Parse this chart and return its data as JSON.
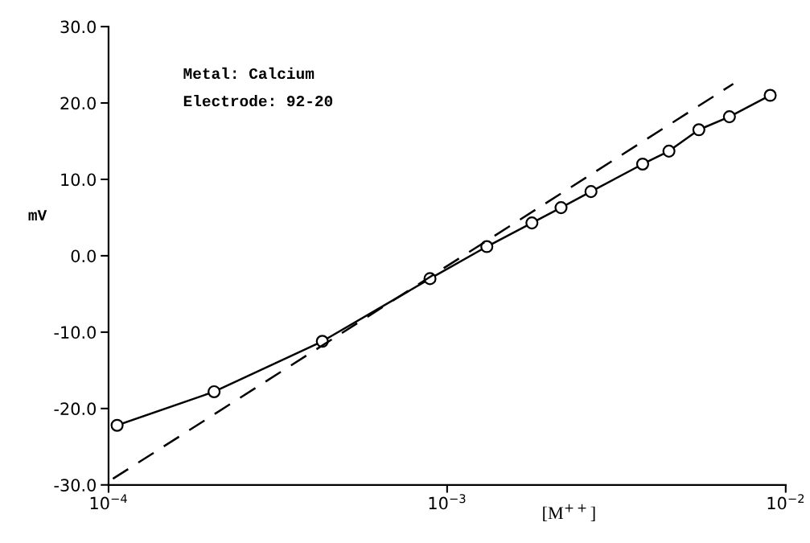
{
  "chart_data": {
    "type": "line",
    "xlabel": "[M$^{++}$]",
    "ylabel": "mV",
    "log": "x",
    "annotations": [
      "Metal: Calcium",
      "Electrode: 92-20"
    ],
    "xlim": [
      0.0001,
      0.01
    ],
    "xticks": [
      {
        "value": 0.0001,
        "label": "10$^{−4}$"
      },
      {
        "value": 0.001,
        "label": "10$^{−3}$"
      },
      {
        "value": 0.01,
        "label": "10$^{−2}$"
      }
    ],
    "ylim": [
      -30,
      30
    ],
    "yticks": [
      {
        "value": -30,
        "label": "-30.0"
      },
      {
        "value": -20,
        "label": "-20.0"
      },
      {
        "value": -10,
        "label": "-10.0"
      },
      {
        "value": 0,
        "label": "0.0"
      },
      {
        "value": 10,
        "label": "10.0"
      },
      {
        "value": 20,
        "label": "20.0"
      },
      {
        "value": 30,
        "label": "30.0"
      }
    ],
    "grid": false,
    "series": [
      {
        "color": "#000000",
        "marker": "circle",
        "line_style": "solid",
        "x": [
          0.000106,
          0.000205,
          0.000428,
          0.00089,
          0.00131,
          0.00178,
          0.00217,
          0.00266,
          0.00378,
          0.00452,
          0.00554,
          0.00682,
          0.009
        ],
        "values": [
          -22.2,
          -17.8,
          -11.2,
          -3.0,
          1.2,
          4.3,
          6.3,
          8.4,
          12.0,
          13.7,
          16.5,
          18.2,
          21.0
        ]
      },
      {
        "color": "#000000",
        "marker": "none",
        "line_style": "dashed",
        "x": [
          0.000103,
          0.007
        ],
        "values": [
          -29.2,
          22.5
        ]
      }
    ]
  }
}
